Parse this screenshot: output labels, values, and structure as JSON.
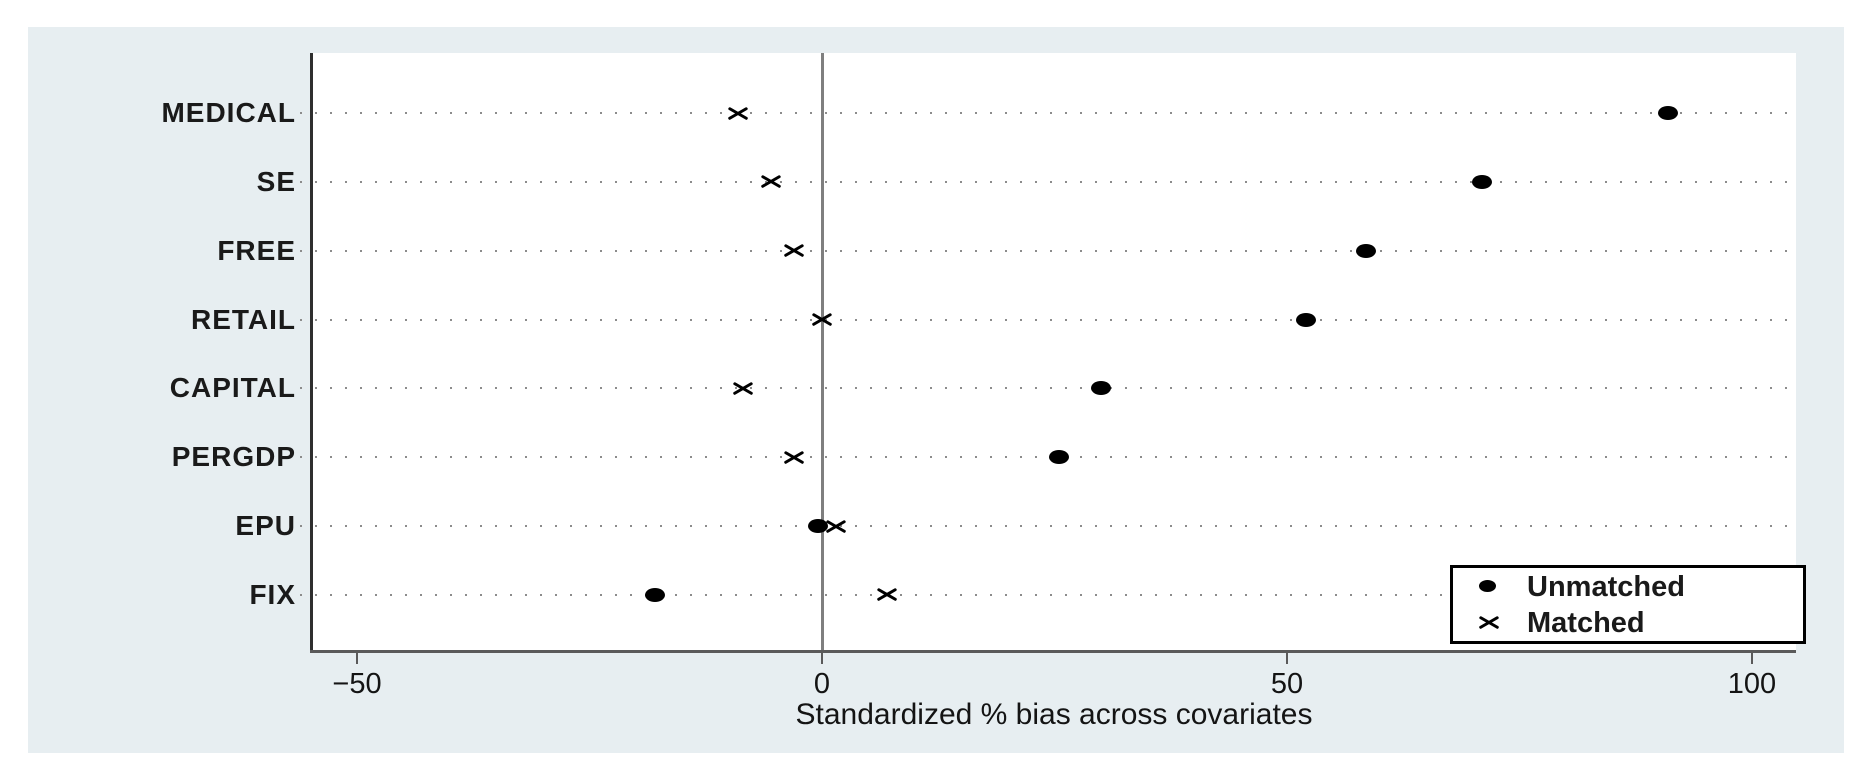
{
  "colors": {
    "figure_background": "#e7eef1",
    "plot_background": "#ffffff",
    "marker_color": "#000000",
    "zero_line_color": "#7f7f7f",
    "grid_color": "#8c8c8c",
    "axis_color": "#2e2e2e",
    "text_color": "#1a1a1a"
  },
  "chart_data": {
    "type": "scatter",
    "subtype": "horizontal-dot-plot",
    "title": "",
    "xlabel": "Standardized % bias across covariates",
    "ylabel": "",
    "categories": [
      "MEDICAL",
      "SE",
      "FREE",
      "RETAIL",
      "CAPITAL",
      "PERGDP",
      "EPU",
      "FIX"
    ],
    "x_ticks": [
      {
        "value": -50,
        "label": "−50"
      },
      {
        "value": 0,
        "label": "0"
      },
      {
        "value": 50,
        "label": "50"
      },
      {
        "value": 100,
        "label": "100"
      }
    ],
    "xlim": [
      -55,
      105
    ],
    "zero_reference_line": 0,
    "grid": "horizontal-dotted",
    "legend_position": "bottom-right",
    "series": [
      {
        "name": "Unmatched",
        "marker": "dot",
        "values": [
          91,
          71,
          58.5,
          52,
          30,
          25.5,
          -0.4,
          -18
        ]
      },
      {
        "name": "Matched",
        "marker": "x",
        "values": [
          -9,
          -5.5,
          -3,
          0,
          -8.5,
          -3,
          1.5,
          7
        ]
      }
    ]
  }
}
